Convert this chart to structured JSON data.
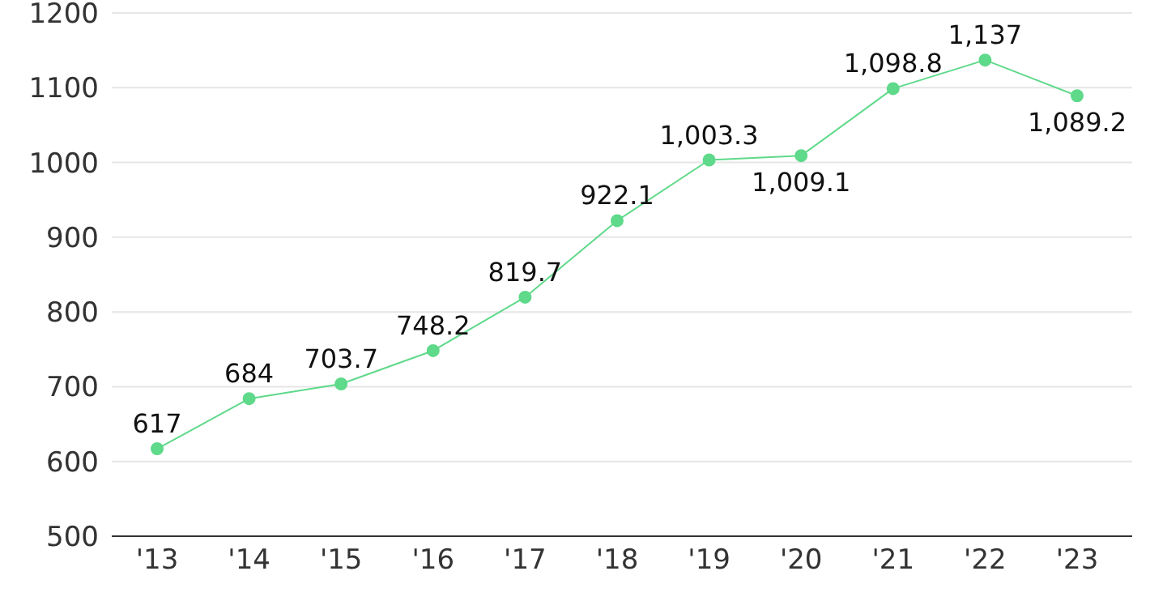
{
  "chart_data": {
    "type": "line",
    "categories": [
      "'13",
      "'14",
      "'15",
      "'16",
      "'17",
      "'18",
      "'19",
      "'20",
      "'21",
      "'22",
      "'23"
    ],
    "series": [
      {
        "color": "#5fd98a",
        "values": [
          617,
          684,
          703.7,
          748.2,
          819.7,
          922.1,
          1003.3,
          1009.1,
          1098.8,
          1137,
          1089.2
        ],
        "value_labels": [
          "617",
          "684",
          "703.7",
          "748.2",
          "819.7",
          "922.1",
          "1,003.3",
          "1,009.1",
          "1,098.8",
          "1,137",
          "1,089.2"
        ]
      }
    ],
    "ylim": [
      500,
      1200
    ],
    "yticks": [
      500,
      600,
      700,
      800,
      900,
      1000,
      1100,
      1200
    ],
    "grid": "y",
    "marker": "circle",
    "line_style": "solid",
    "legend": false
  }
}
